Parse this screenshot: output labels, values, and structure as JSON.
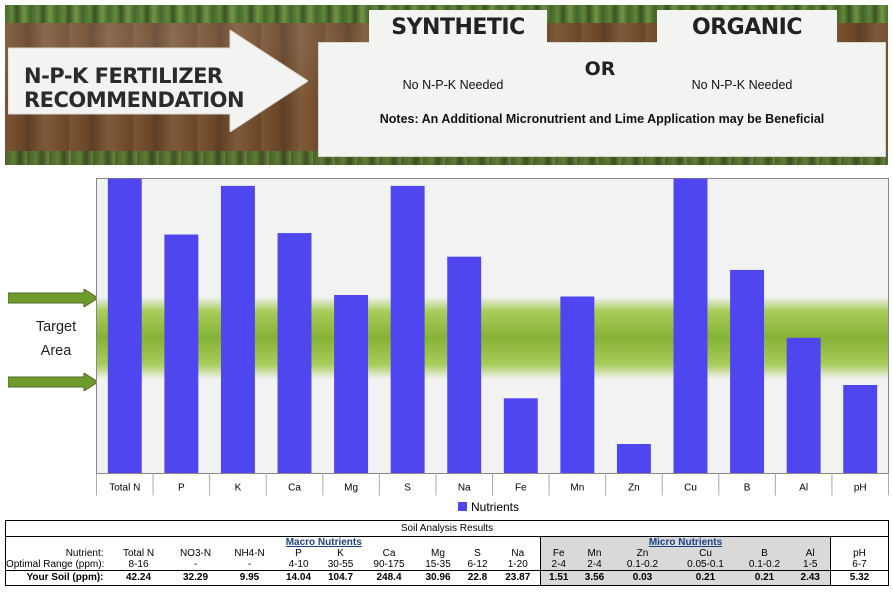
{
  "banner": {
    "title_line1": "N-P-K FERTILIZER",
    "title_line2": "RECOMMENDATION",
    "synthetic_label": "SYNTHETIC",
    "organic_label": "ORGANIC",
    "or_label": "OR",
    "synthetic_value": "No N-P-K Needed",
    "organic_value": "No N-P-K Needed",
    "notes": "Notes: An Additional Micronutrient and Lime Application may be Beneficial"
  },
  "target": {
    "line1": "Target",
    "line2": "Area"
  },
  "colors": {
    "bar": "#5046F0",
    "target_band": "#8DB83A",
    "arrow": "#6E9A2F",
    "micro_bg": "#D9D9D9",
    "group_header": "#1F3F86"
  },
  "chart_data": {
    "type": "bar",
    "categories": [
      "Total N",
      "P",
      "K",
      "Ca",
      "Mg",
      "S",
      "Na",
      "Fe",
      "Mn",
      "Zn",
      "Cu",
      "B",
      "Al",
      "pH"
    ],
    "series": [
      {
        "name": "Nutrients",
        "values": [
          1.0,
          0.81,
          0.975,
          0.815,
          0.605,
          0.975,
          0.735,
          0.255,
          0.6,
          0.1,
          1.0,
          0.69,
          0.46,
          0.3
        ]
      }
    ],
    "ylim": [
      0,
      1
    ],
    "target_range": [
      0.32,
      0.6
    ],
    "legend": "bottom-center",
    "grid": false
  },
  "table": {
    "title": "Soil Analysis Results",
    "macro_header": "Macro Nutrients",
    "micro_header": "Micro Nutrients",
    "nutrient_label": "Nutrient:",
    "optimal_label": "Optimal Range (ppm):",
    "your_soil_label": "Your Soil (ppm):",
    "macro": {
      "nutrients": [
        "Total N",
        "NO3-N",
        "NH4-N",
        "P",
        "K",
        "Ca",
        "Mg",
        "S",
        "Na"
      ],
      "optimal": [
        "8-16",
        "-",
        "-",
        "4-10",
        "30-55",
        "90-175",
        "15-35",
        "6-12",
        "1-20"
      ],
      "your_soil": [
        "42.24",
        "32.29",
        "9.95",
        "14.04",
        "104.7",
        "248.4",
        "30.96",
        "22.8",
        "23.87"
      ]
    },
    "micro": {
      "nutrients": [
        "Fe",
        "Mn",
        "Zn",
        "Cu",
        "B",
        "Al"
      ],
      "optimal": [
        "2-4",
        "2-4",
        "0.1-0.2",
        "0.05-0.1",
        "0.1-0.2",
        "1-5"
      ],
      "your_soil": [
        "1.51",
        "3.56",
        "0.03",
        "0.21",
        "0.21",
        "2.43"
      ]
    },
    "ph": {
      "nutrient": "pH",
      "optimal": "6-7",
      "your_soil": "5.32"
    }
  }
}
